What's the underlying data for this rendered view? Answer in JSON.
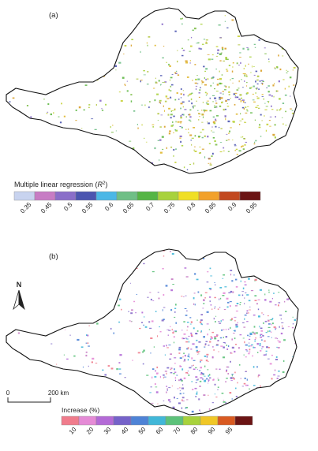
{
  "panel_a": {
    "label": "(a)",
    "legend": {
      "title_prefix": "Multiple linear regression (",
      "title_symbol": "R",
      "title_sup": "2",
      "title_suffix": ")",
      "tick_labels": [
        "0.35",
        "0.45",
        "0.5",
        "0.55",
        "0.6",
        "0.65",
        "0.7",
        "0.75",
        "0.8",
        "0.85",
        "0.9",
        "0.95"
      ],
      "colors": [
        "#c8d3ef",
        "#c77cc4",
        "#8a6ec9",
        "#4b55b0",
        "#4bb7e6",
        "#6fbf86",
        "#55b545",
        "#a8d23c",
        "#f0df24",
        "#f2a12a",
        "#c2481f",
        "#6b1414"
      ]
    }
  },
  "panel_b": {
    "label": "(b)",
    "north": "N",
    "scale": {
      "start": "0",
      "end": "200 km"
    },
    "legend": {
      "title": "Increase (%)",
      "tick_labels": [
        "10",
        "20",
        "30",
        "40",
        "50",
        "60",
        "70",
        "80",
        "90",
        "95"
      ],
      "colors": [
        "#f07c8c",
        "#e58bd6",
        "#b36ad6",
        "#7562c9",
        "#4e83d6",
        "#41b7d8",
        "#5dc27a",
        "#a8d23c",
        "#f0c727",
        "#d95a21",
        "#6b1414"
      ]
    }
  }
}
